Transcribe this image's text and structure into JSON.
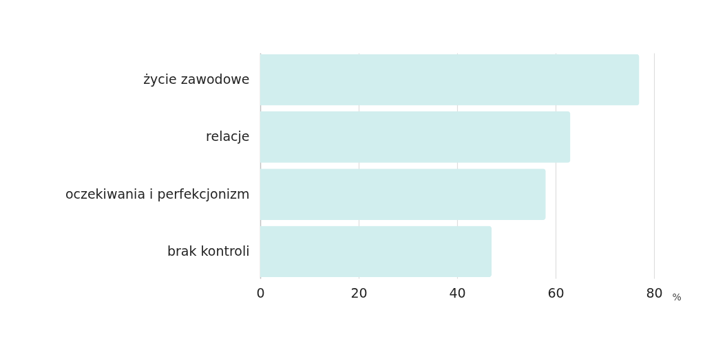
{
  "chart_data": {
    "type": "bar",
    "orientation": "horizontal",
    "categories": [
      "życie zawodowe",
      "relacje",
      "oczekiwania i perfekcjonizm",
      "brak kontroli"
    ],
    "values": [
      77,
      63,
      58,
      47
    ],
    "color": "#d1eeee",
    "xlim": [
      0,
      80
    ],
    "xticks": [
      0,
      20,
      40,
      60,
      80
    ],
    "xlabel": "%",
    "grid": "x"
  }
}
